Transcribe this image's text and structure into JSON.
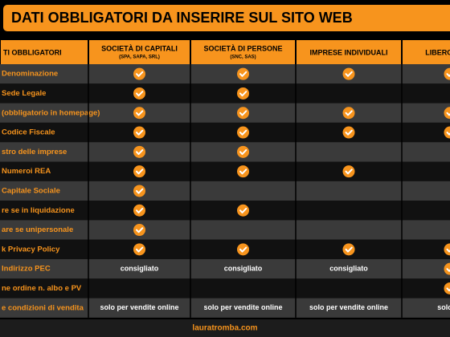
{
  "header": {
    "title": "DATI OBBLIGATORI DA INSERIRE SUL SITO WEB"
  },
  "table": {
    "columns": [
      {
        "label": "TI OBBLIGATORI"
      },
      {
        "label": "SOCIETÀ DI CAPITALI",
        "sublabel": "(SPA, SAPA, SRL)"
      },
      {
        "label": "SOCIETÀ DI PERSONE",
        "sublabel": "(SNC, SAS)"
      },
      {
        "label": "IMPRESE INDIVIDUALI"
      },
      {
        "label": "LIBERO PROF"
      }
    ],
    "rows": [
      {
        "label": "Denominazione",
        "cells": [
          true,
          true,
          true,
          true
        ]
      },
      {
        "label": "Sede Legale",
        "cells": [
          true,
          true,
          false,
          false
        ]
      },
      {
        "label": "(obbligatorio in homepage)",
        "cells": [
          true,
          true,
          true,
          true
        ]
      },
      {
        "label": "Codice Fiscale",
        "cells": [
          true,
          true,
          true,
          true
        ]
      },
      {
        "label": "stro delle imprese",
        "cells": [
          true,
          true,
          false,
          false
        ]
      },
      {
        "label": "Numeroi REA",
        "cells": [
          true,
          true,
          true,
          false
        ]
      },
      {
        "label": "Capitale Sociale",
        "cells": [
          true,
          false,
          false,
          false
        ]
      },
      {
        "label": "re se in liquidazione",
        "cells": [
          true,
          true,
          false,
          false
        ]
      },
      {
        "label": "are se unipersonale",
        "cells": [
          true,
          false,
          false,
          false
        ]
      },
      {
        "label": "k Privacy Policy",
        "cells": [
          true,
          true,
          true,
          true
        ]
      },
      {
        "label": "Indirizzo PEC",
        "cells": [
          "consigliato",
          "consigliato",
          "consigliato",
          true
        ]
      },
      {
        "label": "ne ordine n. albo e PV",
        "cells": [
          false,
          false,
          false,
          true
        ]
      },
      {
        "label": "e condizioni di vendita",
        "cells": [
          "solo per vendite online",
          "solo per vendite online",
          "solo per vendite online",
          "solo pe"
        ]
      }
    ]
  },
  "footer": {
    "text": "lauratromba.com"
  }
}
